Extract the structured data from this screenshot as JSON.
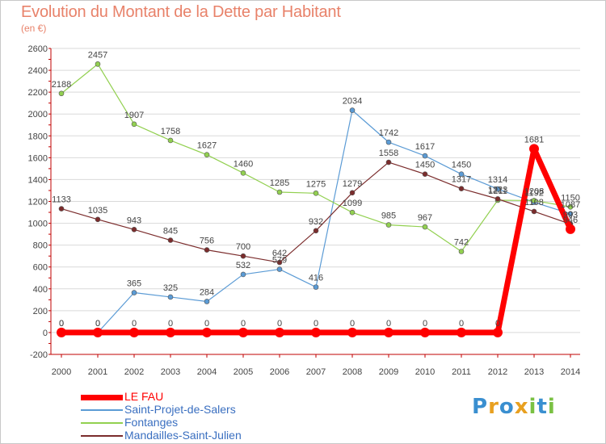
{
  "header": {
    "title": "Evolution du Montant de la Dette par Habitant",
    "subtitle": "(en €)"
  },
  "colors": {
    "title": "#e8826a",
    "axis": "#c00000",
    "grid": "#d9d9d9",
    "label": "#444444"
  },
  "chart_data": {
    "type": "line",
    "x": [
      "2000",
      "2001",
      "2002",
      "2003",
      "2004",
      "2005",
      "2006",
      "2007",
      "2008",
      "2009",
      "2010",
      "2011",
      "2012",
      "2013",
      "2014"
    ],
    "ylim": [
      -200,
      2600
    ],
    "yticks": [
      "-200",
      "0",
      "200",
      "400",
      "600",
      "800",
      "1000",
      "1200",
      "1400",
      "1600",
      "1800",
      "2000",
      "2200",
      "2400",
      "2600"
    ],
    "grid": "horizontal",
    "legend_position": "bottom-left",
    "series": [
      {
        "name": "LE FAU",
        "color": "#ff0000",
        "width": 7,
        "marker": 6,
        "values": [
          0,
          0,
          0,
          0,
          0,
          0,
          0,
          0,
          0,
          0,
          0,
          0,
          0,
          1681,
          946
        ],
        "labels": [
          "0",
          "0",
          "0",
          "0",
          "0",
          "0",
          "0",
          "0",
          "0",
          "0",
          "0",
          "0",
          "0",
          "1681",
          "946"
        ]
      },
      {
        "name": "Saint-Projet-de-Salers",
        "color": "#5b9bd5",
        "width": 1.2,
        "marker": 3,
        "values": [
          0,
          0,
          365,
          325,
          284,
          532,
          579,
          416,
          2034,
          1742,
          1617,
          1450,
          1314,
          1192,
          1087
        ],
        "labels": [
          "0",
          "0",
          "365",
          "325",
          "284",
          "532",
          "579",
          "416",
          "2034",
          "1742",
          "1617",
          "1450",
          "1314",
          "1192",
          "1087"
        ]
      },
      {
        "name": "Fontanges",
        "color": "#92d050",
        "width": 1.2,
        "marker": 3,
        "values": [
          2188,
          2457,
          1907,
          1758,
          1627,
          1460,
          1285,
          1275,
          1099,
          985,
          967,
          742,
          1211,
          1208,
          1150
        ],
        "labels": [
          "2188",
          "2457",
          "1907",
          "1758",
          "1627",
          "1460",
          "1285",
          "1275",
          "1099",
          "985",
          "967",
          "742",
          "1211",
          "1208",
          "1150"
        ]
      },
      {
        "name": "Mandailles-Saint-Julien",
        "color": "#7b2c2c",
        "width": 1.2,
        "marker": 3,
        "values": [
          1133,
          1035,
          943,
          845,
          756,
          700,
          642,
          932,
          1279,
          1558,
          1450,
          1317,
          1223,
          1108,
          993
        ],
        "labels": [
          "1133",
          "1035",
          "943",
          "845",
          "756",
          "700",
          "642",
          "932",
          "1279",
          "1558",
          "1450",
          "1317",
          "1223",
          "1108",
          "993"
        ]
      }
    ]
  },
  "logo": {
    "letters": [
      "P",
      "r",
      "o",
      "x",
      "i",
      "t",
      "i"
    ],
    "colors": [
      "#3a8fd0",
      "#e8a020",
      "#3a8fd0",
      "#e8a020",
      "#7ac143",
      "#3a8fd0",
      "#7ac143"
    ]
  }
}
